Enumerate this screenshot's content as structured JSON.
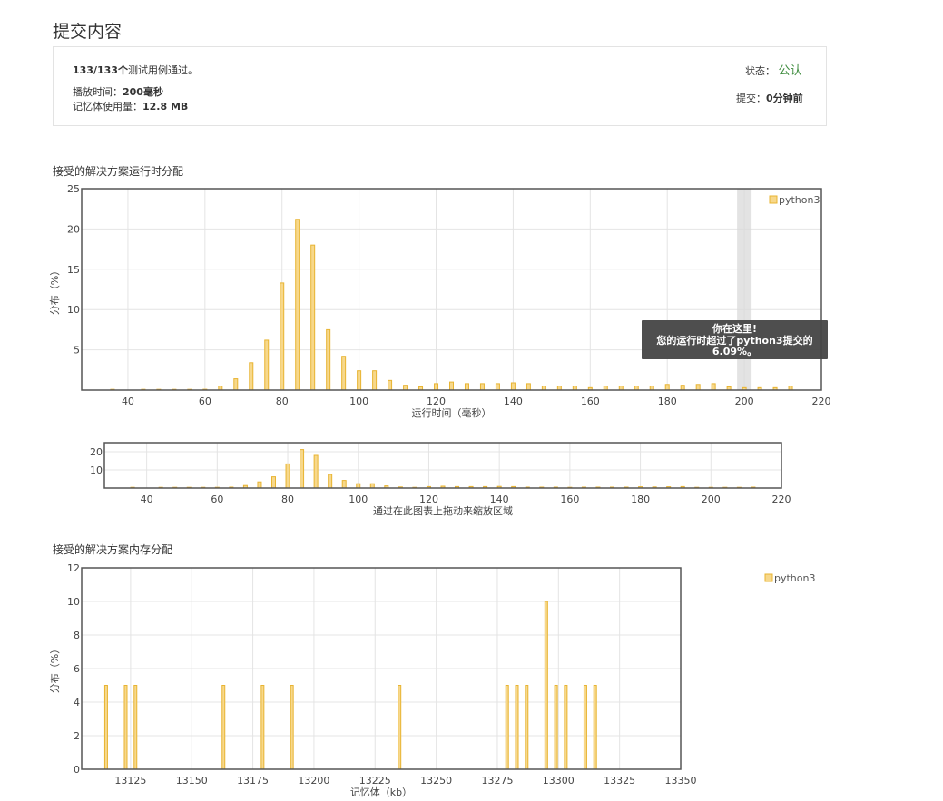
{
  "page": {
    "title": "提交内容"
  },
  "summary": {
    "cases": "133/133个",
    "cases_suffix": "测试用例通过。",
    "runtime_label": "播放时间：",
    "runtime_value": "200毫秒",
    "memory_label": "记忆体使用量：",
    "memory_value": "12.8 MB",
    "status_label": "状态：",
    "status_value": "公认",
    "submitted_label": "提交：",
    "submitted_value": "0分钟前"
  },
  "colors": {
    "bar_fill": "#f7d88b",
    "bar_stroke": "#e8b432",
    "accepted": "#3c8b3c",
    "tooltip_bg": "#444444",
    "highlight": "#d9d9d9"
  },
  "runtime_section": {
    "title": "接受的解决方案运行时分配"
  },
  "memory_section": {
    "title": "接受的解决方案内存分配"
  },
  "tooltip": {
    "line1": "你在这里!",
    "line2": "您的运行时超过了python3提交的",
    "line3": "6.09%。"
  },
  "navigator": {
    "caption": "通过在此图表上拖动来缩放区域"
  },
  "chart_data": [
    {
      "type": "bar",
      "title": "",
      "xlabel": "运行时间（毫秒）",
      "ylabel": "分布（%）",
      "xlim": [
        28,
        220
      ],
      "ylim": [
        0,
        25
      ],
      "xticks": [
        40,
        60,
        80,
        100,
        120,
        140,
        160,
        180,
        200,
        220
      ],
      "yticks": [
        5,
        10,
        15,
        20,
        25
      ],
      "legend": "top-right",
      "grid": true,
      "highlight_x": 200,
      "series": [
        {
          "name": "python3",
          "x": [
            36,
            44,
            48,
            52,
            56,
            60,
            64,
            68,
            72,
            76,
            80,
            84,
            88,
            92,
            96,
            100,
            104,
            108,
            112,
            116,
            120,
            124,
            128,
            132,
            136,
            140,
            144,
            148,
            152,
            156,
            160,
            164,
            168,
            172,
            176,
            180,
            184,
            188,
            192,
            196,
            200,
            204,
            208,
            212
          ],
          "values": [
            0.05,
            0.02,
            0.02,
            0.02,
            0.05,
            0.1,
            0.5,
            1.4,
            3.4,
            6.2,
            13.3,
            21.2,
            18.0,
            7.5,
            4.2,
            2.4,
            2.4,
            1.2,
            0.6,
            0.4,
            0.8,
            1.0,
            0.8,
            0.8,
            0.8,
            0.9,
            0.8,
            0.5,
            0.5,
            0.5,
            0.3,
            0.5,
            0.5,
            0.5,
            0.5,
            0.7,
            0.6,
            0.7,
            0.8,
            0.4,
            0.3,
            0.3,
            0.3,
            0.5
          ]
        }
      ]
    },
    {
      "type": "bar",
      "title": "",
      "xlabel": "通过在此图表上拖动来缩放区域",
      "ylabel": "",
      "xlim": [
        28,
        220
      ],
      "ylim": [
        0,
        25
      ],
      "xticks": [
        40,
        60,
        80,
        100,
        120,
        140,
        160,
        180,
        200,
        220
      ],
      "yticks": [
        10,
        20
      ],
      "grid": true,
      "series": [
        {
          "name": "python3",
          "x": [
            36,
            44,
            48,
            52,
            56,
            60,
            64,
            68,
            72,
            76,
            80,
            84,
            88,
            92,
            96,
            100,
            104,
            108,
            112,
            116,
            120,
            124,
            128,
            132,
            136,
            140,
            144,
            148,
            152,
            156,
            160,
            164,
            168,
            172,
            176,
            180,
            184,
            188,
            192,
            196,
            200,
            204,
            208,
            212
          ],
          "values": [
            0.05,
            0.02,
            0.02,
            0.02,
            0.05,
            0.1,
            0.5,
            1.4,
            3.4,
            6.2,
            13.3,
            21.2,
            18.0,
            7.5,
            4.2,
            2.4,
            2.4,
            1.2,
            0.6,
            0.4,
            0.8,
            1.0,
            0.8,
            0.8,
            0.8,
            0.9,
            0.8,
            0.5,
            0.5,
            0.5,
            0.3,
            0.5,
            0.5,
            0.5,
            0.5,
            0.7,
            0.6,
            0.7,
            0.8,
            0.4,
            0.3,
            0.3,
            0.3,
            0.5
          ]
        }
      ]
    },
    {
      "type": "bar",
      "title": "",
      "xlabel": "记忆体（kb）",
      "ylabel": "分布（%）",
      "xlim": [
        13105,
        13350
      ],
      "ylim": [
        0,
        12
      ],
      "xticks": [
        13125,
        13150,
        13175,
        13200,
        13225,
        13250,
        13275,
        13300,
        13325,
        13350
      ],
      "yticks": [
        0,
        2,
        4,
        6,
        8,
        10,
        12
      ],
      "legend": "right",
      "grid": true,
      "series": [
        {
          "name": "python3",
          "x": [
            13115,
            13123,
            13127,
            13163,
            13179,
            13191,
            13235,
            13279,
            13283,
            13287,
            13295,
            13299,
            13303,
            13311,
            13315
          ],
          "values": [
            5,
            5,
            5,
            5,
            5,
            5,
            5,
            5,
            5,
            5,
            10,
            5,
            5,
            5,
            5
          ]
        }
      ]
    }
  ]
}
